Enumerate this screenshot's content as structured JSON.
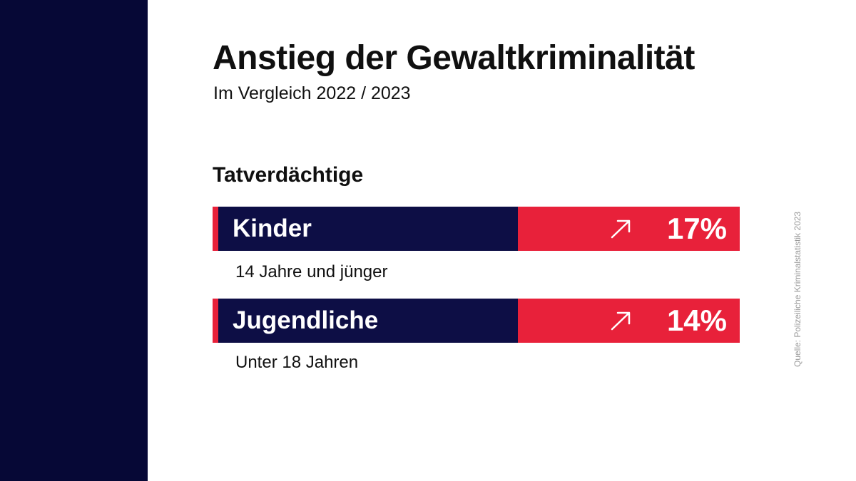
{
  "title": "Anstieg der Gewaltkriminalität",
  "subtitle": "Im Vergleich 2022 / 2023",
  "section_label": "Tatverdächtige",
  "source": "Quelle: Polizeiliche Kriminalstatistik 2023",
  "colors": {
    "navy": "#0d0e45",
    "side_panel": "#060836",
    "red": "#e8213a"
  },
  "rows": [
    {
      "label": "Kinder",
      "value_text": "17%",
      "caption": "14 Jahre und jünger",
      "icon": "arrow-up-right-icon"
    },
    {
      "label": "Jugendliche",
      "value_text": "14%",
      "caption": "Unter 18 Jahren",
      "icon": "arrow-up-right-icon"
    }
  ],
  "chart_data": {
    "type": "table",
    "title": "Anstieg der Gewaltkriminalität",
    "subtitle": "Im Vergleich 2022 / 2023",
    "categories": [
      "Kinder",
      "Jugendliche"
    ],
    "values": [
      17,
      14
    ],
    "unit": "%"
  }
}
